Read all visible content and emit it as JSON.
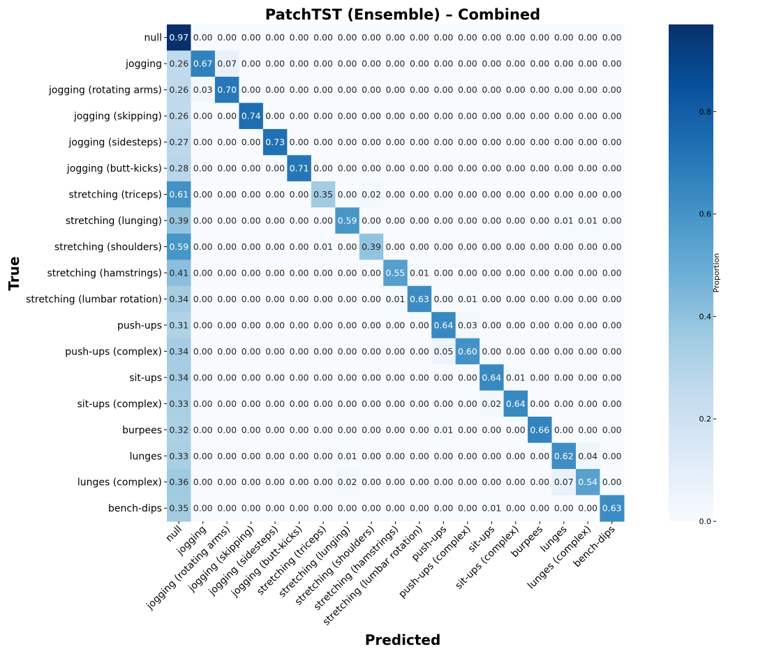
{
  "chart_data": {
    "type": "heatmap",
    "title": "PatchTST (Ensemble) – Combined",
    "xlabel": "Predicted",
    "ylabel": "True",
    "colorbar_label": "Proportion",
    "colormap": "Blues",
    "vmin": 0.0,
    "vmax": 0.97,
    "colorbar_ticks": [
      "0.0",
      "0.2",
      "0.4",
      "0.6",
      "0.8"
    ],
    "labels": [
      "null",
      "jogging",
      "jogging (rotating arms)",
      "jogging (skipping)",
      "jogging (sidesteps)",
      "jogging (butt-kicks)",
      "stretching (triceps)",
      "stretching (lunging)",
      "stretching (shoulders)",
      "stretching (hamstrings)",
      "stretching (lumbar rotation)",
      "push-ups",
      "push-ups (complex)",
      "sit-ups",
      "sit-ups (complex)",
      "burpees",
      "lunges",
      "lunges (complex)",
      "bench-dips"
    ],
    "matrix": [
      [
        0.97,
        0.0,
        0.0,
        0.0,
        0.0,
        0.0,
        0.0,
        0.0,
        0.0,
        0.0,
        0.0,
        0.0,
        0.0,
        0.0,
        0.0,
        0.0,
        0.0,
        0.0,
        0.0
      ],
      [
        0.26,
        0.67,
        0.07,
        0.0,
        0.0,
        0.0,
        0.0,
        0.0,
        0.0,
        0.0,
        0.0,
        0.0,
        0.0,
        0.0,
        0.0,
        0.0,
        0.0,
        0.0,
        0.0
      ],
      [
        0.26,
        0.03,
        0.7,
        0.0,
        0.0,
        0.0,
        0.0,
        0.0,
        0.0,
        0.0,
        0.0,
        0.0,
        0.0,
        0.0,
        0.0,
        0.0,
        0.0,
        0.0,
        0.0
      ],
      [
        0.26,
        0.0,
        0.0,
        0.74,
        0.0,
        0.0,
        0.0,
        0.0,
        0.0,
        0.0,
        0.0,
        0.0,
        0.0,
        0.0,
        0.0,
        0.0,
        0.0,
        0.0,
        0.0
      ],
      [
        0.27,
        0.0,
        0.0,
        0.0,
        0.73,
        0.0,
        0.0,
        0.0,
        0.0,
        0.0,
        0.0,
        0.0,
        0.0,
        0.0,
        0.0,
        0.0,
        0.0,
        0.0,
        0.0
      ],
      [
        0.28,
        0.0,
        0.0,
        0.0,
        0.0,
        0.71,
        0.0,
        0.0,
        0.0,
        0.0,
        0.0,
        0.0,
        0.0,
        0.0,
        0.0,
        0.0,
        0.0,
        0.0,
        0.0
      ],
      [
        0.61,
        0.0,
        0.0,
        0.0,
        0.0,
        0.0,
        0.35,
        0.0,
        0.02,
        0.0,
        0.0,
        0.0,
        0.0,
        0.0,
        0.0,
        0.0,
        0.0,
        0.0,
        0.0
      ],
      [
        0.39,
        0.0,
        0.0,
        0.0,
        0.0,
        0.0,
        0.0,
        0.59,
        0.0,
        0.0,
        0.0,
        0.0,
        0.0,
        0.0,
        0.0,
        0.0,
        0.01,
        0.01,
        0.0
      ],
      [
        0.59,
        0.0,
        0.0,
        0.0,
        0.0,
        0.0,
        0.01,
        0.0,
        0.39,
        0.0,
        0.0,
        0.0,
        0.0,
        0.0,
        0.0,
        0.0,
        0.0,
        0.0,
        0.0
      ],
      [
        0.41,
        0.0,
        0.0,
        0.0,
        0.0,
        0.0,
        0.0,
        0.0,
        0.0,
        0.55,
        0.01,
        0.0,
        0.0,
        0.0,
        0.0,
        0.0,
        0.0,
        0.0,
        0.0
      ],
      [
        0.34,
        0.0,
        0.0,
        0.0,
        0.0,
        0.0,
        0.0,
        0.0,
        0.0,
        0.01,
        0.63,
        0.0,
        0.01,
        0.0,
        0.0,
        0.0,
        0.0,
        0.0,
        0.0
      ],
      [
        0.31,
        0.0,
        0.0,
        0.0,
        0.0,
        0.0,
        0.0,
        0.0,
        0.0,
        0.0,
        0.0,
        0.64,
        0.03,
        0.0,
        0.0,
        0.0,
        0.0,
        0.0,
        0.0
      ],
      [
        0.34,
        0.0,
        0.0,
        0.0,
        0.0,
        0.0,
        0.0,
        0.0,
        0.0,
        0.0,
        0.0,
        0.05,
        0.6,
        0.0,
        0.0,
        0.0,
        0.0,
        0.0,
        0.0
      ],
      [
        0.34,
        0.0,
        0.0,
        0.0,
        0.0,
        0.0,
        0.0,
        0.0,
        0.0,
        0.0,
        0.0,
        0.0,
        0.0,
        0.64,
        0.01,
        0.0,
        0.0,
        0.0,
        0.0
      ],
      [
        0.33,
        0.0,
        0.0,
        0.0,
        0.0,
        0.0,
        0.0,
        0.0,
        0.0,
        0.0,
        0.0,
        0.0,
        0.0,
        0.02,
        0.64,
        0.0,
        0.0,
        0.0,
        0.0
      ],
      [
        0.32,
        0.0,
        0.0,
        0.0,
        0.0,
        0.0,
        0.0,
        0.0,
        0.0,
        0.0,
        0.0,
        0.01,
        0.0,
        0.0,
        0.0,
        0.66,
        0.0,
        0.0,
        0.0
      ],
      [
        0.33,
        0.0,
        0.0,
        0.0,
        0.0,
        0.0,
        0.0,
        0.01,
        0.0,
        0.0,
        0.0,
        0.0,
        0.0,
        0.0,
        0.0,
        0.0,
        0.62,
        0.04,
        0.0
      ],
      [
        0.36,
        0.0,
        0.0,
        0.0,
        0.0,
        0.0,
        0.0,
        0.02,
        0.0,
        0.0,
        0.0,
        0.0,
        0.0,
        0.0,
        0.0,
        0.0,
        0.07,
        0.54,
        0.0
      ],
      [
        0.35,
        0.0,
        0.0,
        0.0,
        0.0,
        0.0,
        0.0,
        0.0,
        0.0,
        0.0,
        0.0,
        0.0,
        0.0,
        0.01,
        0.0,
        0.0,
        0.0,
        0.0,
        0.63
      ]
    ]
  }
}
